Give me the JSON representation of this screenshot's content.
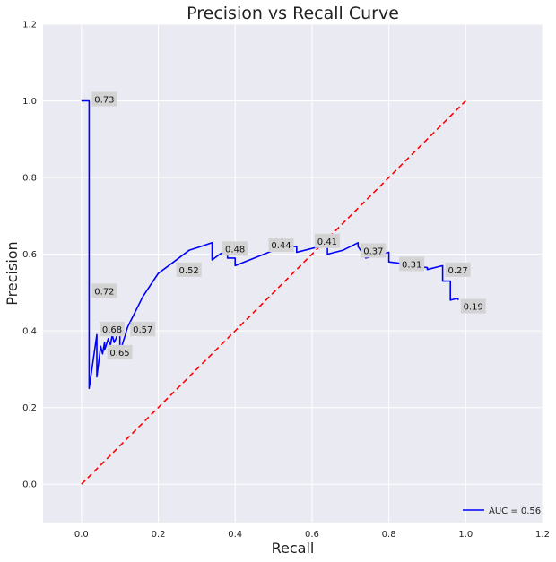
{
  "chart_data": {
    "type": "line",
    "title": "Precision vs Recall Curve",
    "xlabel": "Recall",
    "ylabel": "Precision",
    "xlim": [
      -0.1,
      1.2
    ],
    "ylim": [
      -0.1,
      1.2
    ],
    "xticks": [
      "0.0",
      "0.2",
      "0.4",
      "0.6",
      "0.8",
      "1.0",
      "1.2"
    ],
    "xtick_values": [
      0.0,
      0.2,
      0.4,
      0.6,
      0.8,
      1.0,
      1.2
    ],
    "yticks": [
      "0.0",
      "0.2",
      "0.4",
      "0.6",
      "0.8",
      "1.0",
      "1.2"
    ],
    "ytick_values": [
      0.0,
      0.2,
      0.4,
      0.6,
      0.8,
      1.0,
      1.2
    ],
    "grid": true,
    "legend_position": "bottom-right",
    "series": [
      {
        "name": "AUC = 0.56",
        "color": "#0000ff",
        "style": "solid",
        "x": [
          0.0,
          0.02,
          0.02,
          0.02,
          0.04,
          0.04,
          0.05,
          0.055,
          0.06,
          0.06,
          0.07,
          0.075,
          0.08,
          0.085,
          0.09,
          0.095,
          0.1,
          0.1,
          0.105,
          0.12,
          0.16,
          0.2,
          0.24,
          0.28,
          0.31,
          0.34,
          0.34,
          0.36,
          0.38,
          0.38,
          0.4,
          0.4,
          0.45,
          0.5,
          0.55,
          0.56,
          0.56,
          0.6,
          0.62,
          0.64,
          0.64,
          0.68,
          0.72,
          0.72,
          0.74,
          0.76,
          0.78,
          0.8,
          0.8,
          0.84,
          0.86,
          0.9,
          0.9,
          0.94,
          0.94,
          0.96,
          0.96,
          0.98,
          0.98
        ],
        "y": [
          1.0,
          1.0,
          0.73,
          0.25,
          0.39,
          0.28,
          0.36,
          0.34,
          0.37,
          0.35,
          0.38,
          0.36,
          0.39,
          0.37,
          0.38,
          0.4,
          0.42,
          0.36,
          0.36,
          0.41,
          0.49,
          0.55,
          0.58,
          0.61,
          0.62,
          0.63,
          0.585,
          0.6,
          0.61,
          0.59,
          0.59,
          0.57,
          0.59,
          0.61,
          0.62,
          0.62,
          0.605,
          0.615,
          0.62,
          0.62,
          0.6,
          0.61,
          0.63,
          0.62,
          0.59,
          0.595,
          0.6,
          0.605,
          0.58,
          0.575,
          0.57,
          0.565,
          0.56,
          0.57,
          0.53,
          0.53,
          0.48,
          0.485,
          0.48
        ]
      },
      {
        "name": "",
        "color": "#ff0000",
        "style": "dashed",
        "x": [
          0.0,
          1.0
        ],
        "y": [
          0.0,
          1.0
        ]
      }
    ],
    "annotations": [
      {
        "text": "0.73",
        "x": 0.02,
        "y": 1.0
      },
      {
        "text": "0.72",
        "x": 0.02,
        "y": 0.5
      },
      {
        "text": "0.68",
        "x": 0.04,
        "y": 0.4
      },
      {
        "text": "0.65",
        "x": 0.06,
        "y": 0.34
      },
      {
        "text": "0.57",
        "x": 0.12,
        "y": 0.4
      },
      {
        "text": "0.52",
        "x": 0.24,
        "y": 0.555
      },
      {
        "text": "0.48",
        "x": 0.36,
        "y": 0.61
      },
      {
        "text": "0.44",
        "x": 0.48,
        "y": 0.62
      },
      {
        "text": "0.41",
        "x": 0.6,
        "y": 0.63
      },
      {
        "text": "0.37",
        "x": 0.72,
        "y": 0.605
      },
      {
        "text": "0.31",
        "x": 0.82,
        "y": 0.57
      },
      {
        "text": "0.27",
        "x": 0.94,
        "y": 0.555
      },
      {
        "text": "0.19",
        "x": 0.98,
        "y": 0.46
      }
    ]
  },
  "colors": {
    "plot_background": "#eaeaf2",
    "grid": "#ffffff",
    "annotation_box": "#d3d3d3"
  }
}
